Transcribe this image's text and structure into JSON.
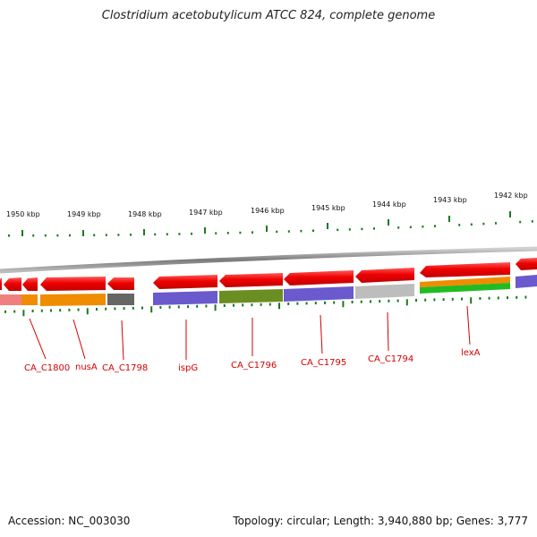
{
  "title": "Clostridium acetobutylicum ATCC 824, complete genome",
  "footer": {
    "accession": "Accession: NC_003030",
    "summary": "Topology: circular; Length: 3,940,880 bp; Genes: 3,777"
  },
  "colors": {
    "gene_red": "#ee0000",
    "backbone": "#8a8a8a",
    "tick_green": "#1a7a1a",
    "label_red": "#d40000",
    "cds_orange": "#f08c00",
    "cds_grey": "#666666",
    "cds_purple": "#6a5acd",
    "cds_olive": "#6b8e23",
    "cds_lightgrey": "#bdbdbd",
    "cds_green": "#22bb22",
    "cds_pink": "#f08080"
  },
  "scale_labels": [
    "1950 kbp",
    "1949 kbp",
    "1948 kbp",
    "1947 kbp",
    "1946 kbp",
    "1945 kbp",
    "1944 kbp",
    "1943 kbp",
    "1942 kbp"
  ],
  "gene_labels": [
    "CA_C1800",
    "nusA",
    "CA_C1798",
    "ispG",
    "CA_C1796",
    "CA_C1795",
    "CA_C1794",
    "lexA"
  ]
}
